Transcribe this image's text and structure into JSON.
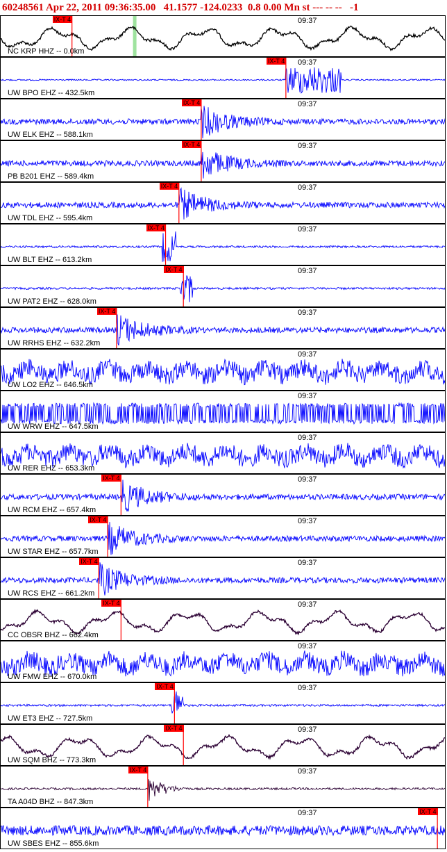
{
  "header": {
    "event_id": "60248561",
    "datetime": "Apr 22, 2011 09:36:35.00",
    "coords": "41.1577 -124.0233",
    "magnitude": "0.8 0.00 Mn st",
    "status": "--- -- --",
    "flag": "-1"
  },
  "pick_label": "IX-T 4",
  "time_label": "09:37",
  "colors": {
    "header": "#d40000",
    "trace_blue": "#0000ff",
    "trace_black": "#000000",
    "trace_purple": "#2b0033",
    "pick": "#ff0000",
    "highlight": "#9fe39f"
  },
  "traces": [
    {
      "label": "NC KRP HHZ -- 0.0km",
      "color": "black",
      "style": "slow",
      "pick": 0.16,
      "highlight": 0.3
    },
    {
      "label": "UW BPO EHZ -- 432.5km",
      "color": "blue",
      "style": "burst-late",
      "pick": 0.64
    },
    {
      "label": "UW ELK EHZ -- 588.1km",
      "color": "blue",
      "style": "noise-event",
      "pick": 0.45
    },
    {
      "label": "PB B201 EHZ -- 589.4km",
      "color": "blue",
      "style": "noise-event",
      "pick": 0.45
    },
    {
      "label": "UW TDL EHZ -- 595.4km",
      "color": "blue",
      "style": "noise-event",
      "pick": 0.4
    },
    {
      "label": "UW BLT EHZ -- 613.2km",
      "color": "blue",
      "style": "quiet-spike",
      "pick": 0.37
    },
    {
      "label": "UW PAT2 EHZ -- 628.0km",
      "color": "blue",
      "style": "quiet-spike",
      "pick": 0.41
    },
    {
      "label": "UW RRHS EHZ -- 632.2km",
      "color": "blue",
      "style": "noise-event",
      "pick": 0.26
    },
    {
      "label": "UW LO2 EHZ -- 646.5km",
      "color": "blue",
      "style": "heavy",
      "pick": null
    },
    {
      "label": "UW WRW EHZ -- 647.5km",
      "color": "blue",
      "style": "saturated",
      "pick": null
    },
    {
      "label": "UW RER EHZ -- 653.3km",
      "color": "blue",
      "style": "heavy",
      "pick": null
    },
    {
      "label": "UW RCM EHZ -- 657.4km",
      "color": "blue",
      "style": "noise-event",
      "pick": 0.27
    },
    {
      "label": "UW STAR EHZ -- 657.7km",
      "color": "blue",
      "style": "noise-event",
      "pick": 0.24
    },
    {
      "label": "UW RCS EHZ -- 661.2km",
      "color": "blue",
      "style": "noise-event",
      "pick": 0.22
    },
    {
      "label": "CC OBSR BHZ -- 662.4km",
      "color": "purple",
      "style": "slow",
      "pick": 0.27
    },
    {
      "label": "UW FMW EHZ -- 670.0km",
      "color": "blue",
      "style": "heavy",
      "pick": null
    },
    {
      "label": "UW ET3 EHZ -- 727.5km",
      "color": "blue",
      "style": "quiet-spike",
      "pick": 0.39
    },
    {
      "label": "UW SQM BHZ -- 773.3km",
      "color": "purple",
      "style": "slow",
      "pick": 0.41
    },
    {
      "label": "TA A04D BHZ -- 847.3km",
      "color": "purple",
      "style": "quiet-event",
      "pick": 0.33
    },
    {
      "label": "UW SBES EHZ -- 855.6km",
      "color": "blue",
      "style": "noise",
      "pick": 0.98
    }
  ]
}
